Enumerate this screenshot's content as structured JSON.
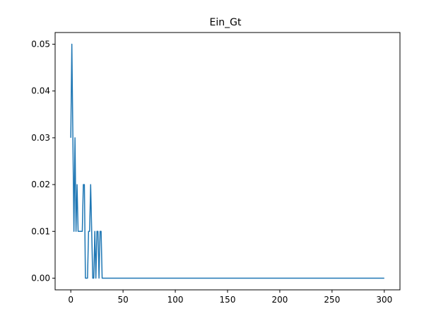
{
  "chart_data": {
    "type": "line",
    "title": "Ein_Gt",
    "xlabel": "",
    "ylabel": "",
    "xlim": [
      -15,
      315
    ],
    "ylim": [
      -0.0025,
      0.0525
    ],
    "xticks": [
      0,
      50,
      100,
      150,
      200,
      250,
      300
    ],
    "xtick_labels": [
      "0",
      "50",
      "100",
      "150",
      "200",
      "250",
      "300"
    ],
    "yticks": [
      0.0,
      0.01,
      0.02,
      0.03,
      0.04,
      0.05
    ],
    "ytick_labels": [
      "0.00",
      "0.01",
      "0.02",
      "0.03",
      "0.04",
      "0.05"
    ],
    "grid": false,
    "series": [
      {
        "color": "#1f77b4",
        "x": [
          0,
          1,
          2,
          3,
          4,
          5,
          6,
          7,
          8,
          9,
          10,
          11,
          12,
          13,
          14,
          15,
          16,
          17,
          18,
          19,
          20,
          21,
          22,
          23,
          24,
          25,
          26,
          27,
          28,
          29,
          30,
          300
        ],
        "y": [
          0.03,
          0.05,
          0.03,
          0.01,
          0.03,
          0.01,
          0.02,
          0.01,
          0.01,
          0.01,
          0.01,
          0.01,
          0.02,
          0.02,
          0.0,
          0.0,
          0.0,
          0.01,
          0.01,
          0.02,
          0.01,
          0.0,
          0.0,
          0.01,
          0.0,
          0.01,
          0.01,
          0.0,
          0.01,
          0.01,
          0.0,
          0.0
        ]
      }
    ]
  }
}
